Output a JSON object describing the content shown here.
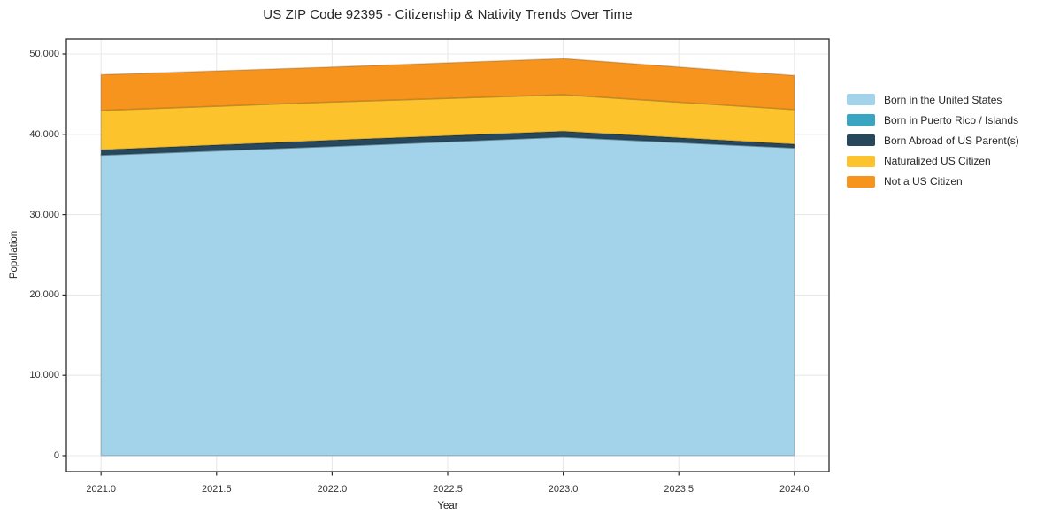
{
  "chart_data": {
    "type": "area",
    "title": "US ZIP Code 92395 - Citizenship & Nativity Trends Over Time",
    "xlabel": "Year",
    "ylabel": "Population",
    "x": [
      2021,
      2022,
      2023,
      2024
    ],
    "series": [
      {
        "name": "Born in the United States",
        "color": "#a2d3ea",
        "values": [
          37400,
          38500,
          39650,
          38300
        ]
      },
      {
        "name": "Born in Puerto Rico / Islands",
        "color": "#3aa5c1",
        "values": [
          25,
          25,
          30,
          25
        ]
      },
      {
        "name": "Born Abroad of US Parent(s)",
        "color": "#27475c",
        "values": [
          650,
          750,
          700,
          450
        ]
      },
      {
        "name": "Naturalized US Citizen",
        "color": "#fcc32d",
        "values": [
          4900,
          4750,
          4550,
          4300
        ]
      },
      {
        "name": "Not a US Citizen",
        "color": "#f7941e",
        "values": [
          4450,
          4350,
          4500,
          4250
        ]
      }
    ],
    "totals_by_year": [
      47425,
      48375,
      49430,
      47325
    ],
    "xticks": {
      "values": [
        2021.0,
        2021.5,
        2022.0,
        2022.5,
        2023.0,
        2023.5,
        2024.0
      ],
      "labels": [
        "2021.0",
        "2021.5",
        "2022.0",
        "2022.5",
        "2023.0",
        "2023.5",
        "2024.0"
      ]
    },
    "yticks": {
      "values": [
        0,
        10000,
        20000,
        30000,
        40000,
        50000
      ],
      "labels": [
        "0",
        "10,000",
        "20,000",
        "30,000",
        "40,000",
        "50,000"
      ]
    },
    "xlim": [
      2020.85,
      2024.15
    ],
    "ylim": [
      -1982,
      51872
    ],
    "grid": true,
    "legend_position": "right-outside",
    "colors": {
      "grid": "#e9e9e9",
      "spine": "#2b2b2b",
      "tick": "#2b2b2b",
      "area_edge": "rgba(0,0,0,0.15)",
      "background": "#ffffff"
    }
  }
}
